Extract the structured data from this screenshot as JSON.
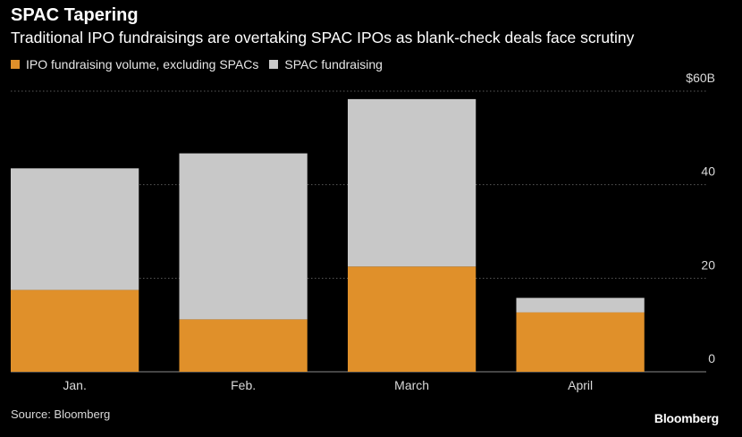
{
  "header": {
    "title": "SPAC Tapering",
    "subtitle": "Traditional IPO fundraisings are overtaking SPAC IPOs as blank-check deals face scrutiny"
  },
  "legend": {
    "items": [
      {
        "label": "IPO fundraising volume, excluding SPACs",
        "color": "#e0902a"
      },
      {
        "label": "SPAC fundraising",
        "color": "#c8c8c8"
      }
    ]
  },
  "footer": {
    "source": "Source: Bloomberg",
    "brand": "Bloomberg"
  },
  "chart_data": {
    "type": "bar",
    "stacked": true,
    "categories": [
      "Jan.",
      "Feb.",
      "March",
      "April"
    ],
    "series": [
      {
        "name": "IPO fundraising volume, excluding SPACs",
        "color": "#e0902a",
        "values": [
          17.5,
          11.2,
          22.5,
          12.7
        ]
      },
      {
        "name": "SPAC fundraising",
        "color": "#c8c8c8",
        "values": [
          26.0,
          35.5,
          35.8,
          3.1
        ]
      }
    ],
    "ylim": [
      0,
      60
    ],
    "yticks": [
      {
        "value": 0,
        "label": "0"
      },
      {
        "value": 20,
        "label": "20"
      },
      {
        "value": 40,
        "label": "40"
      },
      {
        "value": 60,
        "label": "$60B"
      }
    ],
    "axis_side": "right",
    "grid": true
  }
}
